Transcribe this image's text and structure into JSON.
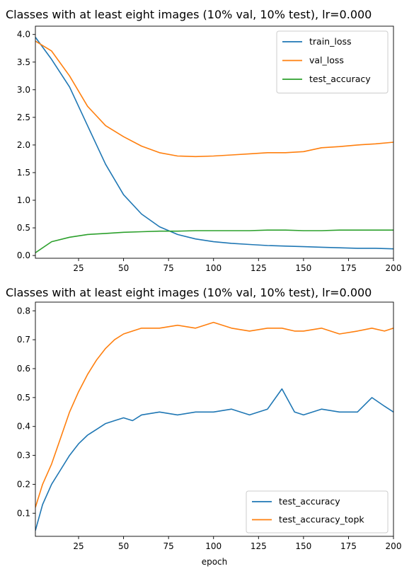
{
  "chart_data": [
    {
      "type": "line",
      "title": "Classes with at least eight images (10% val, 10% test), lr=0.000",
      "xlabel": "",
      "ylabel": "",
      "xlim": [
        1,
        200
      ],
      "ylim": [
        -0.05,
        4.15
      ],
      "x_ticks": [
        25,
        50,
        75,
        100,
        125,
        150,
        175,
        200
      ],
      "y_ticks": [
        0.0,
        0.5,
        1.0,
        1.5,
        2.0,
        2.5,
        3.0,
        3.5,
        4.0
      ],
      "grid": false,
      "legend_position": "top-right",
      "x": [
        1,
        10,
        20,
        30,
        40,
        50,
        60,
        70,
        80,
        90,
        100,
        110,
        120,
        130,
        140,
        150,
        160,
        170,
        180,
        190,
        200
      ],
      "series": [
        {
          "name": "train_loss",
          "color": "#1f77b4",
          "values": [
            3.95,
            3.55,
            3.05,
            2.35,
            1.65,
            1.1,
            0.75,
            0.52,
            0.38,
            0.3,
            0.25,
            0.22,
            0.2,
            0.18,
            0.17,
            0.16,
            0.15,
            0.14,
            0.13,
            0.13,
            0.12
          ]
        },
        {
          "name": "val_loss",
          "color": "#ff7f0e",
          "values": [
            3.88,
            3.7,
            3.25,
            2.7,
            2.35,
            2.15,
            1.98,
            1.86,
            1.8,
            1.79,
            1.8,
            1.82,
            1.84,
            1.86,
            1.86,
            1.88,
            1.95,
            1.97,
            2.0,
            2.02,
            2.05
          ]
        },
        {
          "name": "test_accuracy",
          "color": "#2ca02c",
          "values": [
            0.05,
            0.25,
            0.33,
            0.38,
            0.4,
            0.42,
            0.43,
            0.44,
            0.44,
            0.45,
            0.45,
            0.45,
            0.45,
            0.46,
            0.46,
            0.45,
            0.45,
            0.46,
            0.46,
            0.46,
            0.46
          ]
        }
      ]
    },
    {
      "type": "line",
      "title": "Classes with at least eight images (10% val, 10% test), lr=0.000",
      "xlabel": "epoch",
      "ylabel": "",
      "xlim": [
        1,
        200
      ],
      "ylim": [
        0.02,
        0.83
      ],
      "x_ticks": [
        25,
        50,
        75,
        100,
        125,
        150,
        175,
        200
      ],
      "y_ticks": [
        0.1,
        0.2,
        0.3,
        0.4,
        0.5,
        0.6,
        0.7,
        0.8
      ],
      "grid": false,
      "legend_position": "bottom-right",
      "x": [
        1,
        5,
        10,
        15,
        20,
        25,
        30,
        35,
        40,
        45,
        50,
        55,
        60,
        70,
        80,
        90,
        100,
        110,
        120,
        130,
        138,
        145,
        150,
        160,
        170,
        180,
        188,
        195,
        200
      ],
      "series": [
        {
          "name": "test_accuracy",
          "color": "#1f77b4",
          "values": [
            0.04,
            0.13,
            0.2,
            0.25,
            0.3,
            0.34,
            0.37,
            0.39,
            0.41,
            0.42,
            0.43,
            0.42,
            0.44,
            0.45,
            0.44,
            0.45,
            0.45,
            0.46,
            0.44,
            0.46,
            0.53,
            0.45,
            0.44,
            0.46,
            0.45,
            0.45,
            0.5,
            0.47,
            0.45
          ]
        },
        {
          "name": "test_accuracy_topk",
          "color": "#ff7f0e",
          "values": [
            0.12,
            0.2,
            0.27,
            0.36,
            0.45,
            0.52,
            0.58,
            0.63,
            0.67,
            0.7,
            0.72,
            0.73,
            0.74,
            0.74,
            0.75,
            0.74,
            0.76,
            0.74,
            0.73,
            0.74,
            0.74,
            0.73,
            0.73,
            0.74,
            0.72,
            0.73,
            0.74,
            0.73,
            0.74
          ]
        }
      ]
    }
  ]
}
